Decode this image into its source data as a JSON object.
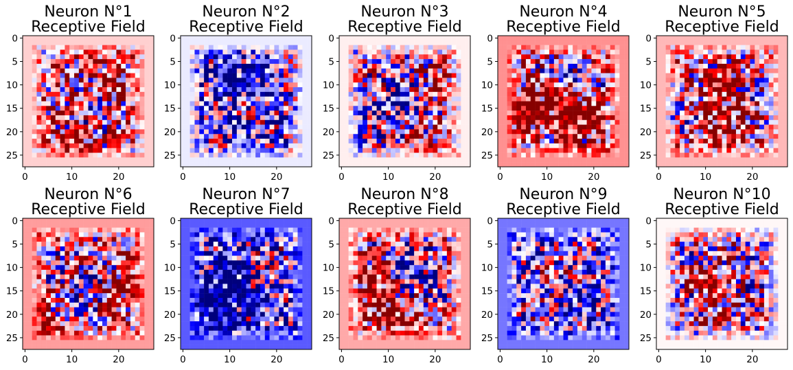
{
  "chart_data": [
    {
      "type": "heatmap",
      "title": "Neuron N°1\nReceptive Field",
      "seed": 11,
      "bg": 0.12,
      "blobs": [
        [
          13,
          15,
          3.5,
          -1.0
        ],
        [
          16,
          8,
          6,
          0.8
        ],
        [
          12,
          23,
          4,
          0.8
        ],
        [
          6,
          18,
          4,
          0.5
        ]
      ],
      "xticks": [
        0,
        10,
        20
      ],
      "yticks": [
        0,
        5,
        10,
        15,
        20,
        25
      ],
      "xlim": [
        -0.5,
        27.5
      ],
      "ylim": [
        27.5,
        -0.5
      ],
      "colormap": "bwr (red positive, blue negative)"
    },
    {
      "type": "heatmap",
      "title": "Neuron N°2\nReceptive Field",
      "seed": 22,
      "bg": -0.05,
      "blobs": [
        [
          12,
          10,
          6,
          -0.8
        ],
        [
          14,
          16,
          3,
          0.6
        ],
        [
          14,
          20,
          5,
          -0.4
        ]
      ],
      "xticks": [
        0,
        10,
        20
      ],
      "yticks": [
        0,
        5,
        10,
        15,
        20,
        25
      ],
      "xlim": [
        -0.5,
        27.5
      ],
      "ylim": [
        27.5,
        -0.5
      ],
      "colormap": "bwr (red positive, blue negative)"
    },
    {
      "type": "heatmap",
      "title": "Neuron N°3\nReceptive Field",
      "seed": 33,
      "bg": 0.04,
      "blobs": [
        [
          12,
          12,
          4,
          -1.0
        ],
        [
          6,
          18,
          4,
          -0.5
        ],
        [
          18,
          10,
          4,
          0.6
        ],
        [
          17,
          24,
          4,
          0.7
        ],
        [
          8,
          10,
          3,
          0.5
        ]
      ],
      "xticks": [
        0,
        10,
        20
      ],
      "yticks": [
        0,
        5,
        10,
        15,
        20,
        25
      ],
      "xlim": [
        -0.5,
        27.5
      ],
      "ylim": [
        27.5,
        -0.5
      ],
      "colormap": "bwr (red positive, blue negative)"
    },
    {
      "type": "heatmap",
      "title": "Neuron N°4\nReceptive Field",
      "seed": 44,
      "bg": 0.28,
      "blobs": [
        [
          15,
          8,
          4,
          -0.9
        ],
        [
          8,
          14,
          5,
          0.8
        ],
        [
          18,
          16,
          5,
          0.6
        ]
      ],
      "xticks": [
        0,
        10,
        20
      ],
      "yticks": [
        0,
        5,
        10,
        15,
        20,
        25
      ],
      "xlim": [
        -0.5,
        27.5
      ],
      "ylim": [
        27.5,
        -0.5
      ],
      "colormap": "bwr (red positive, blue negative)"
    },
    {
      "type": "heatmap",
      "title": "Neuron N°5\nReceptive Field",
      "seed": 55,
      "bg": 0.18,
      "blobs": [
        [
          14,
          10,
          4,
          0.7
        ],
        [
          13,
          20,
          4,
          0.7
        ],
        [
          4,
          16,
          3,
          -0.6
        ],
        [
          22,
          12,
          3,
          -0.5
        ]
      ],
      "xticks": [
        0,
        10,
        20
      ],
      "yticks": [
        0,
        5,
        10,
        15,
        20,
        25
      ],
      "xlim": [
        -0.5,
        27.5
      ],
      "ylim": [
        27.5,
        -0.5
      ],
      "colormap": "bwr (red positive, blue negative)"
    },
    {
      "type": "heatmap",
      "title": "Neuron N°6\nReceptive Field",
      "seed": 66,
      "bg": 0.25,
      "blobs": [
        [
          10,
          18,
          4,
          -0.8
        ],
        [
          16,
          10,
          3,
          -0.4
        ],
        [
          5,
          22,
          4,
          0.9
        ],
        [
          22,
          14,
          4,
          0.7
        ]
      ],
      "xticks": [
        0,
        10,
        20
      ],
      "yticks": [
        0,
        5,
        10,
        15,
        20,
        25
      ],
      "xlim": [
        -0.5,
        27.5
      ],
      "ylim": [
        27.5,
        -0.5
      ],
      "colormap": "bwr (red positive, blue negative)"
    },
    {
      "type": "heatmap",
      "title": "Neuron N°7\nReceptive Field",
      "seed": 77,
      "bg": -0.42,
      "blobs": [
        [
          9,
          16,
          5,
          -1.0
        ],
        [
          18,
          10,
          3,
          0.5
        ],
        [
          14,
          22,
          3,
          0.3
        ]
      ],
      "xticks": [
        0,
        10,
        20
      ],
      "yticks": [
        0,
        5,
        10,
        15,
        20,
        25
      ],
      "xlim": [
        -0.5,
        27.5
      ],
      "ylim": [
        27.5,
        -0.5
      ],
      "colormap": "bwr (red positive, blue negative)"
    },
    {
      "type": "heatmap",
      "title": "Neuron N°8\nReceptive Field",
      "seed": 88,
      "bg": 0.22,
      "blobs": [
        [
          14,
          10,
          3,
          -0.9
        ],
        [
          10,
          20,
          4,
          0.8
        ],
        [
          6,
          12,
          3,
          0.6
        ],
        [
          20,
          14,
          3,
          -0.5
        ]
      ],
      "xticks": [
        0,
        10,
        20
      ],
      "yticks": [
        0,
        5,
        10,
        15,
        20,
        25
      ],
      "xlim": [
        -0.5,
        27.5
      ],
      "ylim": [
        27.5,
        -0.5
      ],
      "colormap": "bwr (red positive, blue negative)"
    },
    {
      "type": "heatmap",
      "title": "Neuron N°9\nReceptive Field",
      "seed": 99,
      "bg": -0.35,
      "blobs": [
        [
          12,
          12,
          5,
          0.4
        ],
        [
          8,
          20,
          3,
          0.3
        ],
        [
          18,
          18,
          3,
          -0.3
        ]
      ],
      "xticks": [
        0,
        10,
        20
      ],
      "yticks": [
        0,
        5,
        10,
        15,
        20,
        25
      ],
      "xlim": [
        -0.5,
        27.5
      ],
      "ylim": [
        27.5,
        -0.5
      ],
      "colormap": "bwr (red positive, blue negative)"
    },
    {
      "type": "heatmap",
      "title": "Neuron N°10\nReceptive Field",
      "seed": 101,
      "bg": 0.02,
      "blobs": [
        [
          12,
          14,
          6,
          0.5
        ],
        [
          20,
          14,
          3,
          -0.4
        ],
        [
          6,
          18,
          3,
          -0.3
        ]
      ],
      "xticks": [
        0,
        10,
        20
      ],
      "yticks": [
        0,
        5,
        10,
        15,
        20,
        25
      ],
      "xlim": [
        -0.5,
        27.5
      ],
      "ylim": [
        27.5,
        -0.5
      ],
      "colormap": "bwr (red positive, blue negative)"
    }
  ]
}
